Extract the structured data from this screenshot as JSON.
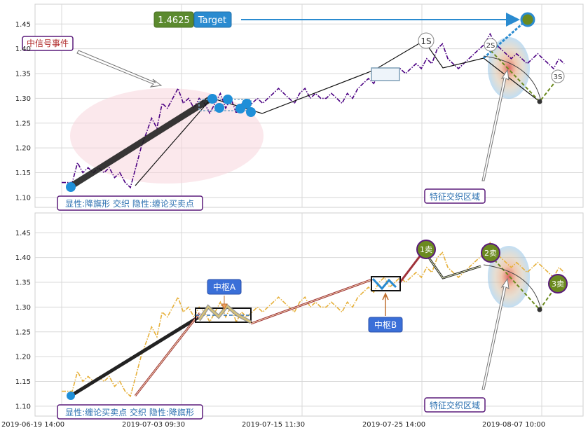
{
  "chart_data": [
    {
      "type": "line",
      "panel": "top",
      "y_ticks": [
        "1.10",
        "1.15",
        "1.20",
        "1.25",
        "1.30",
        "1.35",
        "1.40",
        "1.45"
      ],
      "ylim": [
        1.08,
        1.49
      ],
      "grid": true,
      "series": [
        {
          "style": "dash-dot",
          "color": "#4b0082",
          "x": [
            0,
            1,
            2,
            3,
            4,
            5,
            6,
            7,
            8,
            9,
            10,
            11,
            12,
            13,
            14,
            15,
            16,
            17,
            18,
            19,
            20,
            21,
            22,
            23,
            24,
            25,
            26,
            27,
            28,
            29,
            30,
            31,
            32,
            33,
            34,
            35,
            36,
            37,
            38,
            39,
            40,
            41,
            42,
            43,
            44,
            45,
            46,
            47,
            48,
            49,
            50,
            51,
            52,
            53,
            54,
            55,
            56,
            57,
            58,
            59,
            60,
            61,
            62,
            63,
            64,
            65,
            66,
            67,
            68,
            69,
            70,
            71,
            72,
            73,
            74,
            75,
            76,
            77,
            78,
            79,
            80,
            81,
            82,
            83,
            84,
            85,
            86,
            87,
            88,
            89,
            90,
            91,
            92,
            93,
            94,
            95
          ],
          "values": [
            1.13,
            1.13,
            1.13,
            1.17,
            1.15,
            1.16,
            1.15,
            1.16,
            1.15,
            1.16,
            1.14,
            1.15,
            1.13,
            1.12,
            1.16,
            1.2,
            1.23,
            1.26,
            1.24,
            1.29,
            1.28,
            1.3,
            1.32,
            1.29,
            1.3,
            1.28,
            1.3,
            1.29,
            1.27,
            1.29,
            1.31,
            1.28,
            1.3,
            1.27,
            1.29,
            1.28,
            1.29,
            1.3,
            1.29,
            1.3,
            1.31,
            1.32,
            1.31,
            1.3,
            1.29,
            1.31,
            1.32,
            1.3,
            1.31,
            1.3,
            1.3,
            1.31,
            1.3,
            1.29,
            1.31,
            1.3,
            1.32,
            1.33,
            1.34,
            1.33,
            1.35,
            1.36,
            1.34,
            1.35,
            1.36,
            1.35,
            1.36,
            1.37,
            1.36,
            1.38,
            1.37,
            1.4,
            1.41,
            1.38,
            1.37,
            1.36,
            1.37,
            1.38,
            1.39,
            1.4,
            1.41,
            1.43,
            1.41,
            1.4,
            1.39,
            1.38,
            1.39,
            1.38,
            1.37,
            1.38,
            1.39,
            1.38,
            1.37,
            1.36,
            1.38,
            1.37
          ]
        }
      ]
    },
    {
      "type": "line",
      "panel": "bottom",
      "y_ticks": [
        "1.10",
        "1.15",
        "1.20",
        "1.25",
        "1.30",
        "1.35",
        "1.40",
        "1.45"
      ],
      "ylim": [
        1.08,
        1.49
      ],
      "grid": true,
      "series": [
        {
          "style": "dash-dot",
          "color": "#e6b03a",
          "x": [
            0,
            1,
            2,
            3,
            4,
            5,
            6,
            7,
            8,
            9,
            10,
            11,
            12,
            13,
            14,
            15,
            16,
            17,
            18,
            19,
            20,
            21,
            22,
            23,
            24,
            25,
            26,
            27,
            28,
            29,
            30,
            31,
            32,
            33,
            34,
            35,
            36,
            37,
            38,
            39,
            40,
            41,
            42,
            43,
            44,
            45,
            46,
            47,
            48,
            49,
            50,
            51,
            52,
            53,
            54,
            55,
            56,
            57,
            58,
            59,
            60,
            61,
            62,
            63,
            64,
            65,
            66,
            67,
            68,
            69,
            70,
            71,
            72,
            73,
            74,
            75,
            76,
            77,
            78,
            79,
            80,
            81,
            82,
            83,
            84,
            85,
            86,
            87,
            88,
            89,
            90,
            91,
            92,
            93,
            94,
            95
          ],
          "values": [
            1.13,
            1.13,
            1.13,
            1.17,
            1.15,
            1.16,
            1.15,
            1.16,
            1.15,
            1.16,
            1.14,
            1.15,
            1.13,
            1.12,
            1.16,
            1.2,
            1.23,
            1.26,
            1.24,
            1.29,
            1.28,
            1.3,
            1.32,
            1.29,
            1.3,
            1.28,
            1.3,
            1.29,
            1.27,
            1.29,
            1.31,
            1.28,
            1.3,
            1.27,
            1.29,
            1.28,
            1.29,
            1.3,
            1.29,
            1.3,
            1.31,
            1.32,
            1.31,
            1.3,
            1.29,
            1.31,
            1.32,
            1.3,
            1.31,
            1.3,
            1.3,
            1.31,
            1.3,
            1.29,
            1.31,
            1.3,
            1.32,
            1.33,
            1.34,
            1.33,
            1.35,
            1.36,
            1.34,
            1.35,
            1.36,
            1.35,
            1.36,
            1.37,
            1.36,
            1.38,
            1.37,
            1.4,
            1.41,
            1.38,
            1.37,
            1.36,
            1.37,
            1.38,
            1.39,
            1.4,
            1.41,
            1.43,
            1.41,
            1.4,
            1.39,
            1.38,
            1.39,
            1.38,
            1.37,
            1.38,
            1.39,
            1.38,
            1.37,
            1.36,
            1.38,
            1.37
          ]
        }
      ]
    }
  ],
  "x_ticks": [
    "2019-06-19 14:00",
    "2019-07-03 09:30",
    "2019-07-15 11:30",
    "2019-07-25 14:00",
    "2019-08-07 10:00"
  ],
  "annotations": {
    "target_value": "1.4625",
    "target_label": "Target",
    "signal_event": "中信号事件",
    "top_pattern": "显性:降旗形 交织 隐性:缠论买卖点",
    "bottom_pattern": "显性:缠论买卖点 交织 隐性:降旗形",
    "feature_zone_top": "特征交织区域",
    "feature_zone_bottom": "特征交织区域",
    "pivot_a": "中枢A",
    "pivot_b": "中枢B",
    "sell_1s": "1S",
    "sell_2s": "2S",
    "sell_3s": "3S",
    "sell_1": "1卖",
    "sell_2": "2卖",
    "sell_3": "3卖"
  },
  "colors": {
    "top_price": "#4b0082",
    "bottom_price": "#e6b03a",
    "marker_blue": "#1f8fd8",
    "target_green": "#5b8a2e",
    "target_blue": "#2a8bd0",
    "sell_green": "#6b8a1f",
    "pivot_box_bg": "#3a6fd8",
    "label_border": "#5a1a7a"
  }
}
